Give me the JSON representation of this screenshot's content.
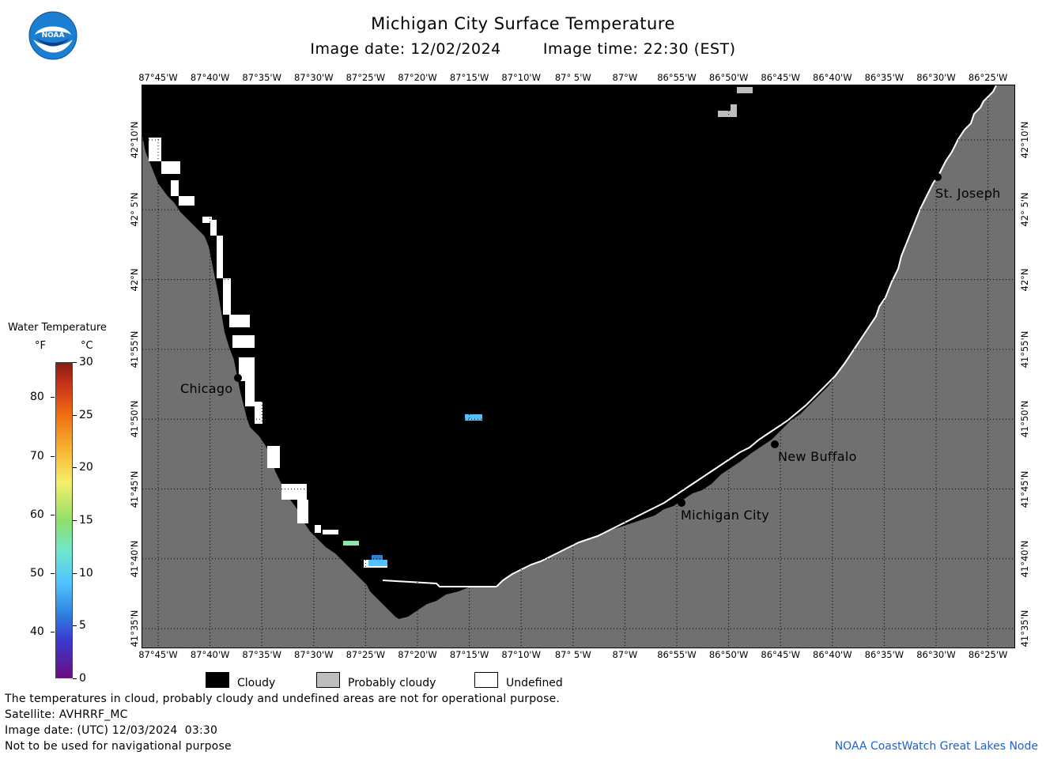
{
  "title": "Michigan City Surface Temperature",
  "subtitle": {
    "date_label": "Image date: 12/02/2024",
    "time_label": "Image time: 22:30 (EST)"
  },
  "logo": {
    "text": "NOAA",
    "icon": "noaa-logo-icon"
  },
  "longitude_ticks": [
    "87°45'W",
    "87°40'W",
    "87°35'W",
    "87°30'W",
    "87°25'W",
    "87°20'W",
    "87°15'W",
    "87°10'W",
    "87° 5'W",
    "87°W",
    "86°55'W",
    "86°50'W",
    "86°45'W",
    "86°40'W",
    "86°35'W",
    "86°30'W",
    "86°25'W"
  ],
  "latitude_ticks": [
    "42°10'N",
    "42° 5'N",
    "42°N",
    "41°55'N",
    "41°50'N",
    "41°45'N",
    "41°40'N",
    "41°35'N"
  ],
  "cities": [
    {
      "name": "Chicago"
    },
    {
      "name": "St. Joseph"
    },
    {
      "name": "New Buffalo"
    },
    {
      "name": "Michigan City"
    }
  ],
  "colorbar": {
    "title": "Water Temperature",
    "unit_f": "°F",
    "unit_c": "°C",
    "f_ticks": [
      "40",
      "50",
      "60",
      "70",
      "80"
    ],
    "c_ticks": [
      "0",
      "5",
      "10",
      "15",
      "20",
      "25",
      "30"
    ],
    "range_c": [
      0,
      30
    ]
  },
  "categories": [
    {
      "label": "Cloudy",
      "color": "#000000"
    },
    {
      "label": "Probably cloudy",
      "color": "#bebebe"
    },
    {
      "label": "Undefined",
      "color": "#ffffff"
    }
  ],
  "colors": {
    "land": "#707070",
    "cloud": "#000000",
    "water_sample": "#4fc3ff"
  },
  "notes": [
    "The temperatures in cloud, probably cloudy and undefined areas are not for operational purpose.",
    "Satellite: AVHRRF_MC",
    "Image date: (UTC) 12/03/2024  03:30",
    "Not to be used for navigational purpose"
  ],
  "credit": "NOAA CoastWatch Great Lakes Node"
}
